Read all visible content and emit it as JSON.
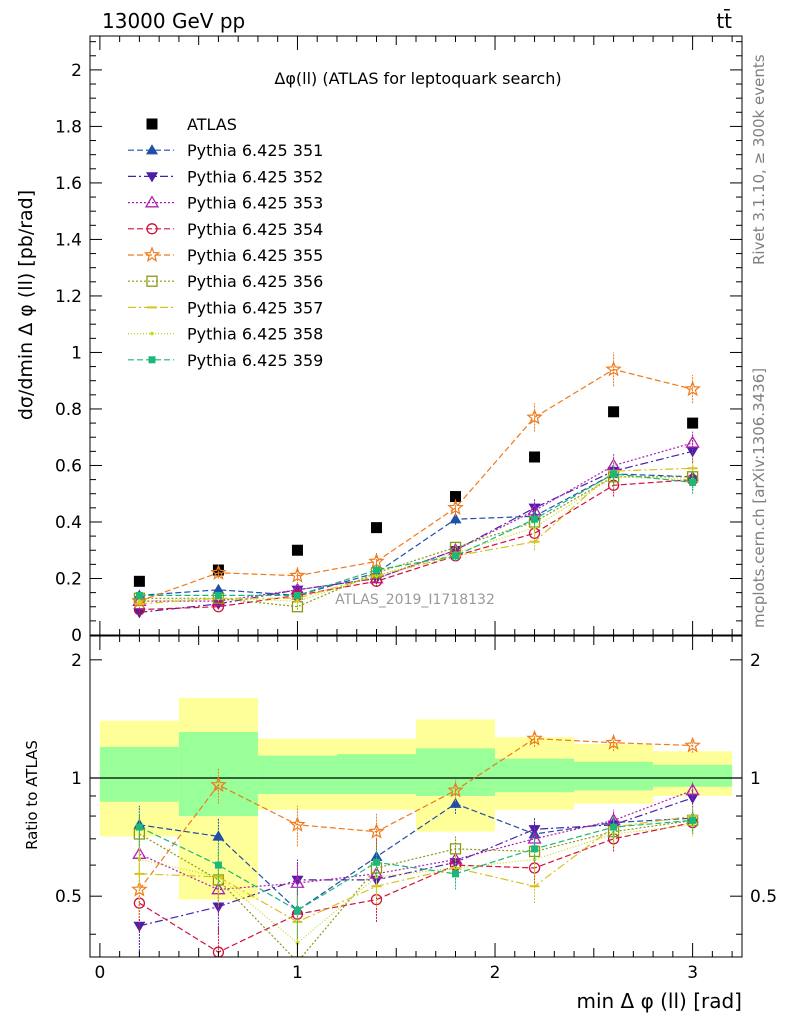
{
  "header": {
    "left": "13000 GeV pp",
    "right": "tt̄"
  },
  "side": {
    "rivet": "Rivet 3.1.10, ≥ 300k events",
    "mcplots": "mcplots.cern.ch [arXiv:1306.3436]"
  },
  "colors": {
    "ATLAS": "#000000",
    "351": "#1f4fa8",
    "352": "#4b1fa8",
    "353": "#b01fb0",
    "354": "#d1113a",
    "355": "#f07a1a",
    "356": "#8a9a12",
    "357": "#d8c21a",
    "358": "#c6d81a",
    "359": "#1ab87a",
    "band_inner": "#99ff99",
    "band_outer": "#ffff99"
  },
  "chart_data": [
    {
      "type": "scatter",
      "title": "Δφ(ll) (ATLAS for leptoquark search)",
      "watermark": "ATLAS_2019_I1718132",
      "xlabel": "min Δ φ (ll) [rad]",
      "ylabel": "dσ/dmin Δ φ (ll) [pb/rad]",
      "xlim": [
        -0.05,
        3.25
      ],
      "ylim": [
        0,
        2.12
      ],
      "yticks": [
        "0",
        "0.2",
        "0.4",
        "0.6",
        "0.8",
        "1",
        "1.2",
        "1.4",
        "1.6",
        "1.8",
        "2"
      ],
      "legend_position": "top-left",
      "x": [
        0.2,
        0.6,
        1.0,
        1.4,
        1.8,
        2.2,
        2.6,
        3.0
      ],
      "series": [
        {
          "name": "ATLAS",
          "key": "ATLAS",
          "marker": "square",
          "dash": "none",
          "values": [
            0.19,
            0.23,
            0.3,
            0.38,
            0.49,
            0.63,
            0.79,
            0.75
          ],
          "err": [
            0,
            0,
            0,
            0,
            0,
            0,
            0,
            0
          ]
        },
        {
          "name": "Pythia 6.425 351",
          "key": "351",
          "marker": "tri-up",
          "dash": "6,3",
          "values": [
            0.14,
            0.16,
            0.14,
            0.22,
            0.41,
            0.42,
            0.57,
            0.56
          ],
          "err": [
            0.01,
            0.01,
            0.01,
            0.02,
            0.02,
            0.03,
            0.04,
            0.04
          ]
        },
        {
          "name": "Pythia 6.425 352",
          "key": "352",
          "marker": "tri-down",
          "dash": "8,3,2,3",
          "values": [
            0.08,
            0.11,
            0.16,
            0.2,
            0.3,
            0.45,
            0.58,
            0.65
          ],
          "err": [
            0.01,
            0.01,
            0.01,
            0.02,
            0.02,
            0.03,
            0.04,
            0.04
          ]
        },
        {
          "name": "Pythia 6.425 353",
          "key": "353",
          "marker": "tri-up-open",
          "dash": "2,2",
          "values": [
            0.12,
            0.12,
            0.16,
            0.2,
            0.3,
            0.44,
            0.6,
            0.68
          ],
          "err": [
            0.01,
            0.01,
            0.01,
            0.02,
            0.02,
            0.03,
            0.04,
            0.04
          ]
        },
        {
          "name": "Pythia 6.425 354",
          "key": "354",
          "marker": "circle-open",
          "dash": "6,3",
          "values": [
            0.09,
            0.1,
            0.14,
            0.19,
            0.28,
            0.36,
            0.53,
            0.55
          ],
          "err": [
            0.01,
            0.01,
            0.01,
            0.02,
            0.02,
            0.03,
            0.04,
            0.04
          ]
        },
        {
          "name": "Pythia 6.425 355",
          "key": "355",
          "marker": "star-open",
          "dash": "6,3",
          "values": [
            0.12,
            0.22,
            0.21,
            0.26,
            0.45,
            0.77,
            0.94,
            0.87
          ],
          "err": [
            0.01,
            0.02,
            0.03,
            0.03,
            0.03,
            0.05,
            0.06,
            0.05
          ]
        },
        {
          "name": "Pythia 6.425 356",
          "key": "356",
          "marker": "square-open",
          "dash": "2,2",
          "values": [
            0.13,
            0.13,
            0.1,
            0.22,
            0.31,
            0.4,
            0.56,
            0.56
          ],
          "err": [
            0.01,
            0.01,
            0.01,
            0.02,
            0.02,
            0.03,
            0.04,
            0.04
          ]
        },
        {
          "name": "Pythia 6.425 357",
          "key": "357",
          "marker": "dash",
          "dash": "8,3,2,3",
          "values": [
            0.11,
            0.13,
            0.13,
            0.21,
            0.28,
            0.33,
            0.58,
            0.59
          ],
          "err": [
            0.01,
            0.01,
            0.01,
            0.02,
            0.02,
            0.03,
            0.04,
            0.04
          ]
        },
        {
          "name": "Pythia 6.425 358",
          "key": "358",
          "marker": "dot",
          "dash": "1,2",
          "values": [
            0.12,
            0.13,
            0.12,
            0.21,
            0.29,
            0.38,
            0.56,
            0.55
          ],
          "err": [
            0.01,
            0.01,
            0.01,
            0.02,
            0.02,
            0.03,
            0.04,
            0.04
          ]
        },
        {
          "name": "Pythia 6.425 359",
          "key": "359",
          "marker": "square-small",
          "dash": "6,3",
          "values": [
            0.14,
            0.14,
            0.14,
            0.23,
            0.28,
            0.41,
            0.57,
            0.54
          ],
          "err": [
            0.01,
            0.01,
            0.01,
            0.02,
            0.02,
            0.03,
            0.04,
            0.04
          ]
        }
      ]
    },
    {
      "type": "scatter",
      "ylabel": "Ratio to ATLAS",
      "xlabel": "min Δ φ (ll) [rad]",
      "xlim": [
        -0.05,
        3.25
      ],
      "ylim": [
        0.35,
        2.3
      ],
      "yticks": [
        "0.5",
        "1",
        "2"
      ],
      "xticks": [
        "0",
        "1",
        "2",
        "3"
      ],
      "bands": {
        "edges": [
          0,
          0.4,
          0.8,
          1.2,
          1.6,
          2.0,
          2.4,
          2.8,
          3.2
        ],
        "inner_lo": [
          0.87,
          0.8,
          0.91,
          0.91,
          0.9,
          0.92,
          0.93,
          0.95
        ],
        "inner_hi": [
          1.2,
          1.31,
          1.14,
          1.15,
          1.19,
          1.12,
          1.1,
          1.08
        ],
        "outer_lo": [
          0.71,
          0.49,
          0.83,
          0.83,
          0.73,
          0.83,
          0.86,
          0.9
        ],
        "outer_hi": [
          1.4,
          1.6,
          1.26,
          1.26,
          1.41,
          1.27,
          1.22,
          1.17
        ]
      },
      "x": [
        0.2,
        0.6,
        1.0,
        1.4,
        1.8,
        2.2,
        2.6,
        3.0
      ],
      "series": [
        {
          "key": "351",
          "values": [
            0.76,
            0.71,
            0.46,
            0.63,
            0.86,
            0.72,
            0.77,
            0.79
          ],
          "err": [
            0.09,
            0.08,
            0.08,
            0.07,
            0.05,
            0.05,
            0.05,
            0.05
          ]
        },
        {
          "key": "352",
          "values": [
            0.42,
            0.47,
            0.55,
            0.55,
            0.61,
            0.74,
            0.76,
            0.89
          ],
          "err": [
            0.07,
            0.07,
            0.07,
            0.06,
            0.05,
            0.05,
            0.05,
            0.05
          ]
        },
        {
          "key": "353",
          "values": [
            0.64,
            0.52,
            0.54,
            0.57,
            0.62,
            0.7,
            0.78,
            0.93
          ],
          "err": [
            0.08,
            0.07,
            0.07,
            0.06,
            0.05,
            0.05,
            0.05,
            0.05
          ]
        },
        {
          "key": "354",
          "values": [
            0.48,
            0.36,
            0.45,
            0.49,
            0.6,
            0.59,
            0.7,
            0.77
          ],
          "err": [
            0.07,
            0.06,
            0.07,
            0.06,
            0.05,
            0.05,
            0.05,
            0.05
          ]
        },
        {
          "key": "355",
          "values": [
            0.52,
            0.96,
            0.76,
            0.73,
            0.93,
            1.26,
            1.23,
            1.21
          ],
          "err": [
            0.08,
            0.1,
            0.09,
            0.08,
            0.06,
            0.06,
            0.06,
            0.05
          ]
        },
        {
          "key": "356",
          "values": [
            0.72,
            0.55,
            0.34,
            0.59,
            0.66,
            0.65,
            0.73,
            0.78
          ],
          "err": [
            0.08,
            0.08,
            0.07,
            0.06,
            0.05,
            0.05,
            0.05,
            0.05
          ]
        },
        {
          "key": "357",
          "values": [
            0.57,
            0.56,
            0.43,
            0.53,
            0.59,
            0.53,
            0.75,
            0.8
          ],
          "err": [
            0.08,
            0.08,
            0.07,
            0.06,
            0.05,
            0.05,
            0.05,
            0.05
          ]
        },
        {
          "key": "358",
          "values": [
            0.62,
            0.56,
            0.38,
            0.56,
            0.59,
            0.62,
            0.72,
            0.76
          ],
          "err": [
            0.08,
            0.08,
            0.07,
            0.06,
            0.05,
            0.05,
            0.05,
            0.05
          ]
        },
        {
          "key": "359",
          "values": [
            0.75,
            0.6,
            0.46,
            0.61,
            0.57,
            0.66,
            0.75,
            0.78
          ],
          "err": [
            0.08,
            0.08,
            0.07,
            0.06,
            0.05,
            0.05,
            0.05,
            0.05
          ]
        }
      ]
    }
  ]
}
